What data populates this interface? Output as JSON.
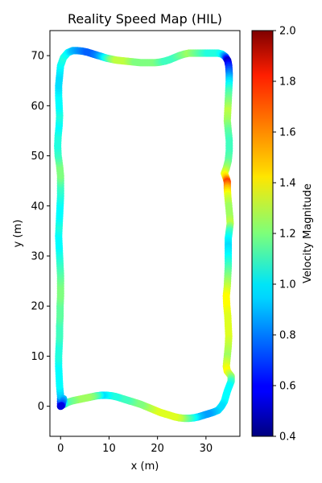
{
  "chart_data": {
    "type": "scatter",
    "title": "Reality Speed Map (HIL)",
    "xlabel": "x (m)",
    "ylabel": "y (m)",
    "xlim": [
      -2.2,
      37.0
    ],
    "ylim": [
      -6.0,
      75.0
    ],
    "xticks": [
      "0",
      "10",
      "20",
      "30"
    ],
    "xtick_values": [
      0,
      10,
      20,
      30
    ],
    "yticks": [
      "0",
      "10",
      "20",
      "30",
      "40",
      "50",
      "60",
      "70"
    ],
    "ytick_values": [
      0,
      10,
      20,
      30,
      40,
      50,
      60,
      70
    ],
    "grid": false,
    "colorbar": {
      "label": "Velocity Magnitude",
      "min": 0.4,
      "max": 2.0,
      "ticks": [
        "0.4",
        "0.6",
        "0.8",
        "1.0",
        "1.2",
        "1.4",
        "1.6",
        "1.8",
        "2.0"
      ],
      "tick_values": [
        0.4,
        0.6,
        0.8,
        1.0,
        1.2,
        1.4,
        1.6,
        1.8,
        2.0
      ],
      "colormap": "jet"
    },
    "series": [
      {
        "points": [
          [
            0,
            0,
            0.5
          ],
          [
            0,
            2,
            0.9
          ],
          [
            -0.2,
            4,
            1.0
          ],
          [
            -0.3,
            6,
            1.0
          ],
          [
            -0.4,
            8,
            1.0
          ],
          [
            -0.4,
            10,
            1.05
          ],
          [
            -0.3,
            12,
            1.05
          ],
          [
            -0.2,
            14,
            1.1
          ],
          [
            -0.2,
            16,
            1.1
          ],
          [
            -0.1,
            18,
            1.15
          ],
          [
            -0.1,
            20,
            1.15
          ],
          [
            0,
            22,
            1.2
          ],
          [
            0,
            24,
            1.2
          ],
          [
            0,
            26,
            1.15
          ],
          [
            -0.1,
            28,
            1.1
          ],
          [
            -0.2,
            30,
            1.05
          ],
          [
            -0.3,
            32,
            1.0
          ],
          [
            -0.4,
            34,
            1.0
          ],
          [
            -0.3,
            36,
            1.05
          ],
          [
            -0.2,
            38,
            1.0
          ],
          [
            -0.1,
            40,
            1.0
          ],
          [
            0,
            42,
            1.05
          ],
          [
            0,
            44,
            1.1
          ],
          [
            0,
            46,
            1.2
          ],
          [
            -0.2,
            48,
            1.2
          ],
          [
            -0.5,
            50,
            1.1
          ],
          [
            -0.6,
            52,
            1.05
          ],
          [
            -0.5,
            54,
            1.05
          ],
          [
            -0.3,
            56,
            1.0
          ],
          [
            -0.2,
            58,
            1.05
          ],
          [
            -0.3,
            60,
            1.0
          ],
          [
            -0.4,
            62,
            1.0
          ],
          [
            -0.4,
            64,
            0.95
          ],
          [
            -0.2,
            66,
            0.95
          ],
          [
            0,
            68,
            1.0
          ],
          [
            0.6,
            69.6,
            1.05
          ],
          [
            1.5,
            70.6,
            1.0
          ],
          [
            2.5,
            71.0,
            0.9
          ],
          [
            3.5,
            71.0,
            0.85
          ],
          [
            4.5,
            70.9,
            0.8
          ],
          [
            5.5,
            70.7,
            0.75
          ],
          [
            6.5,
            70.4,
            0.75
          ],
          [
            7.5,
            70.1,
            0.8
          ],
          [
            8.5,
            69.8,
            0.9
          ],
          [
            9.5,
            69.5,
            1.05
          ],
          [
            10.5,
            69.3,
            1.2
          ],
          [
            11.5,
            69.1,
            1.3
          ],
          [
            12.5,
            69.0,
            1.3
          ],
          [
            13.5,
            68.9,
            1.3
          ],
          [
            14.5,
            68.8,
            1.25
          ],
          [
            15.5,
            68.7,
            1.2
          ],
          [
            16.5,
            68.6,
            1.2
          ],
          [
            17.5,
            68.6,
            1.2
          ],
          [
            18.5,
            68.6,
            1.2
          ],
          [
            19.5,
            68.6,
            1.2
          ],
          [
            20.5,
            68.7,
            1.15
          ],
          [
            21.5,
            68.9,
            1.1
          ],
          [
            22.5,
            69.2,
            1.1
          ],
          [
            23.5,
            69.6,
            1.1
          ],
          [
            24.5,
            70.0,
            1.15
          ],
          [
            25.5,
            70.3,
            1.2
          ],
          [
            26.5,
            70.5,
            1.25
          ],
          [
            27.5,
            70.5,
            1.2
          ],
          [
            28.5,
            70.5,
            1.15
          ],
          [
            29.5,
            70.5,
            1.1
          ],
          [
            30.5,
            70.5,
            1.05
          ],
          [
            31.5,
            70.5,
            1.05
          ],
          [
            32.5,
            70.5,
            1.05
          ],
          [
            33.3,
            70.3,
            1.0
          ],
          [
            34.0,
            69.8,
            0.8
          ],
          [
            34.5,
            69.0,
            0.5
          ],
          [
            34.7,
            68.0,
            0.65
          ],
          [
            34.8,
            66.5,
            0.8
          ],
          [
            34.8,
            65.0,
            0.95
          ],
          [
            34.7,
            63.0,
            1.1
          ],
          [
            34.6,
            61.0,
            1.2
          ],
          [
            34.5,
            59.0,
            1.3
          ],
          [
            34.4,
            57.0,
            1.25
          ],
          [
            34.6,
            55.0,
            1.15
          ],
          [
            34.8,
            53.0,
            1.1
          ],
          [
            34.8,
            51.0,
            1.1
          ],
          [
            34.6,
            49.0,
            1.15
          ],
          [
            34.2,
            47.5,
            1.25
          ],
          [
            33.8,
            46.5,
            1.35
          ],
          [
            34.2,
            45.5,
            1.5
          ],
          [
            34.4,
            44.8,
            1.7
          ],
          [
            34.4,
            43.5,
            1.5
          ],
          [
            34.5,
            42.0,
            1.35
          ],
          [
            34.7,
            40.0,
            1.25
          ],
          [
            34.9,
            38.0,
            1.25
          ],
          [
            35.0,
            36.5,
            1.3
          ],
          [
            34.8,
            35.0,
            1.1
          ],
          [
            34.6,
            33.5,
            1.0
          ],
          [
            34.6,
            32.0,
            0.95
          ],
          [
            34.6,
            30.0,
            1.0
          ],
          [
            34.6,
            28.0,
            1.1
          ],
          [
            34.5,
            26.0,
            1.2
          ],
          [
            34.4,
            24.0,
            1.3
          ],
          [
            34.2,
            22.0,
            1.4
          ],
          [
            34.3,
            20.0,
            1.4
          ],
          [
            34.5,
            18.0,
            1.35
          ],
          [
            34.6,
            16.0,
            1.35
          ],
          [
            34.7,
            14.0,
            1.35
          ],
          [
            34.6,
            12.0,
            1.3
          ],
          [
            34.4,
            10.0,
            1.25
          ],
          [
            34.2,
            8.0,
            1.35
          ],
          [
            34.4,
            7.0,
            1.4
          ],
          [
            35.2,
            6.0,
            1.25
          ],
          [
            35.2,
            5.0,
            1.1
          ],
          [
            34.8,
            4.0,
            1.0
          ],
          [
            34.4,
            3.0,
            1.0
          ],
          [
            34.1,
            2.0,
            1.0
          ],
          [
            33.8,
            1.0,
            1.0
          ],
          [
            33.2,
            0,
            0.95
          ],
          [
            32.5,
            -0.8,
            0.95
          ],
          [
            31.5,
            -1.2,
            0.9
          ],
          [
            30.5,
            -1.5,
            0.85
          ],
          [
            29.5,
            -1.8,
            0.85
          ],
          [
            28.5,
            -2.1,
            0.9
          ],
          [
            27.5,
            -2.3,
            1.0
          ],
          [
            26.5,
            -2.4,
            1.1
          ],
          [
            25.5,
            -2.4,
            1.2
          ],
          [
            24.5,
            -2.3,
            1.3
          ],
          [
            23.5,
            -2.1,
            1.35
          ],
          [
            22.5,
            -1.8,
            1.35
          ],
          [
            21.5,
            -1.5,
            1.35
          ],
          [
            20.5,
            -1.2,
            1.35
          ],
          [
            19.5,
            -0.8,
            1.35
          ],
          [
            18.5,
            -0.4,
            1.3
          ],
          [
            17.5,
            0,
            1.25
          ],
          [
            16.5,
            0.4,
            1.2
          ],
          [
            15.5,
            0.7,
            1.2
          ],
          [
            14.5,
            1.0,
            1.15
          ],
          [
            13.5,
            1.3,
            1.1
          ],
          [
            12.5,
            1.6,
            1.1
          ],
          [
            11.5,
            1.9,
            1.05
          ],
          [
            10.5,
            2.1,
            1.05
          ],
          [
            9.5,
            2.2,
            1.0
          ],
          [
            8.5,
            2.2,
            0.95
          ],
          [
            7.5,
            2.1,
            1.1
          ],
          [
            6.5,
            1.9,
            1.2
          ],
          [
            5.5,
            1.7,
            1.25
          ],
          [
            4.5,
            1.5,
            1.25
          ],
          [
            3.5,
            1.3,
            1.25
          ],
          [
            2.5,
            1.1,
            1.2
          ],
          [
            1.5,
            0.8,
            1.15
          ],
          [
            0.8,
            0.4,
            1.1
          ],
          [
            0.6,
            1.5,
            0.9
          ],
          [
            0.3,
            0.2,
            0.7
          ]
        ]
      }
    ]
  }
}
